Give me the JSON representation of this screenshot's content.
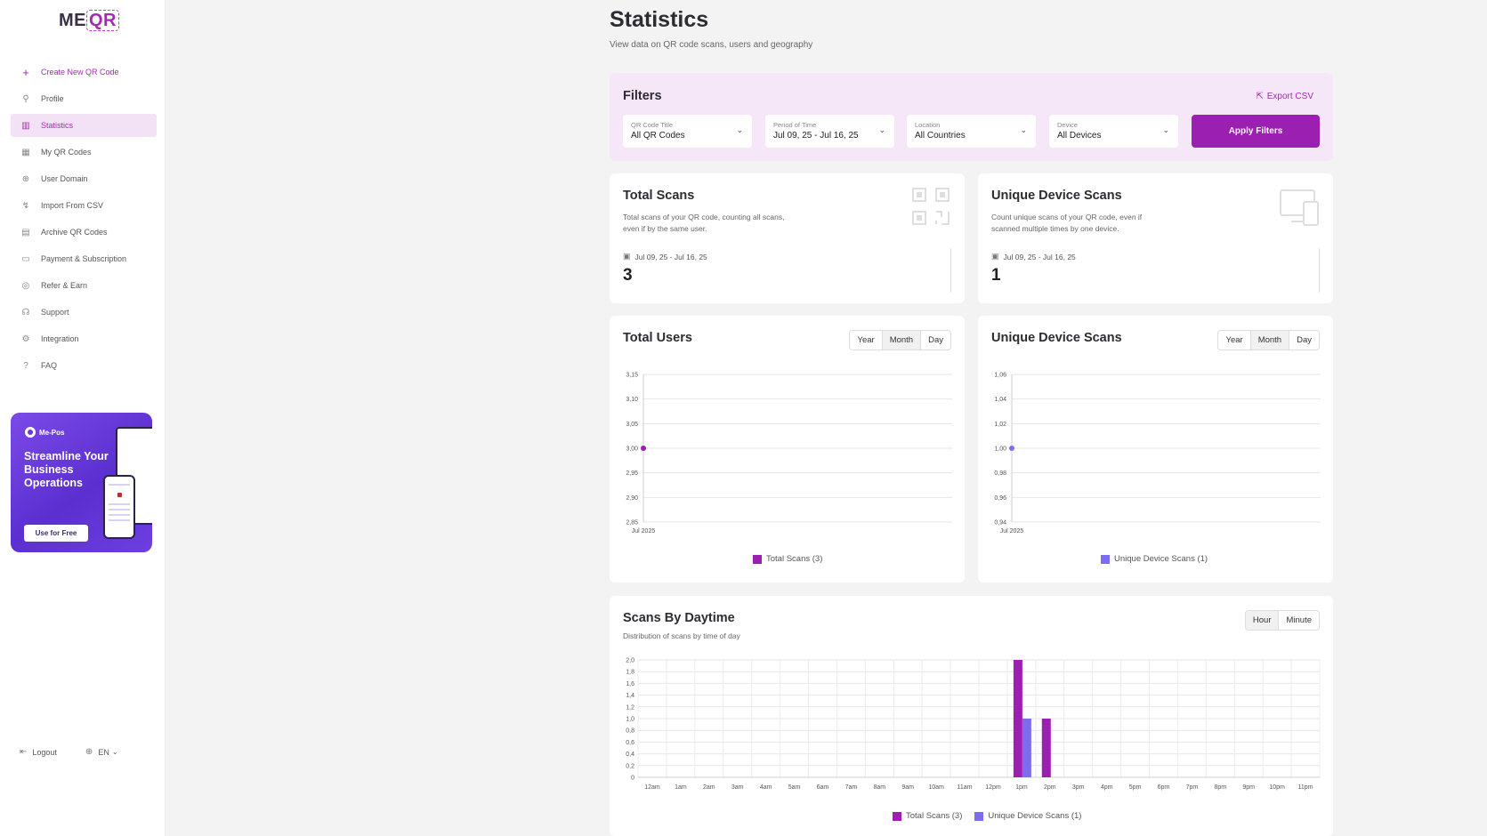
{
  "brand": {
    "logo_left": "ME",
    "logo_right": "QR"
  },
  "sidebar": {
    "items": [
      {
        "label": "Create New QR Code",
        "icon": "plus-icon",
        "glyph": "+"
      },
      {
        "label": "Profile",
        "icon": "user-icon",
        "glyph": "⚲"
      },
      {
        "label": "Statistics",
        "icon": "bar-chart-icon",
        "glyph": "▥"
      },
      {
        "label": "My QR Codes",
        "icon": "qr-icon",
        "glyph": "▦"
      },
      {
        "label": "User Domain",
        "icon": "globe-icon",
        "glyph": "⊕"
      },
      {
        "label": "Import From CSV",
        "icon": "import-icon",
        "glyph": "↯"
      },
      {
        "label": "Archive QR Codes",
        "icon": "archive-icon",
        "glyph": "▤"
      },
      {
        "label": "Payment & Subscription",
        "icon": "card-icon",
        "glyph": "▭"
      },
      {
        "label": "Refer & Earn",
        "icon": "coin-icon",
        "glyph": "◎"
      },
      {
        "label": "Support",
        "icon": "headset-icon",
        "glyph": "☊"
      },
      {
        "label": "Integration",
        "icon": "gear-icon",
        "glyph": "⚙"
      },
      {
        "label": "FAQ",
        "icon": "help-icon",
        "glyph": "?"
      }
    ],
    "promo": {
      "brand": "Me-Pos",
      "headline": "Streamline Your Business Operations",
      "cta": "Use for Free"
    },
    "logout": "Logout",
    "language": "EN"
  },
  "header": {
    "title": "Statistics",
    "subtitle": "View data on QR code scans, users and geography"
  },
  "filters": {
    "title": "Filters",
    "export_label": "Export CSV",
    "selects": [
      {
        "label": "QR Code Title",
        "value": "All QR Codes"
      },
      {
        "label": "Period of Time",
        "value": "Jul 09, 25 - Jul 16, 25"
      },
      {
        "label": "Location",
        "value": "All Countries"
      },
      {
        "label": "Device",
        "value": "All Devices"
      }
    ],
    "apply_label": "Apply Filters"
  },
  "kpis": {
    "total_scans": {
      "title": "Total Scans",
      "desc": "Total scans of your QR code, counting all scans, even if by the same user.",
      "date": "Jul 09, 25 - Jul 16, 25",
      "value": "3"
    },
    "unique_scans": {
      "title": "Unique Device Scans",
      "desc": "Count unique scans of your QR code, even if scanned multiple times by one device.",
      "date": "Jul 09, 25 - Jul 16, 25",
      "value": "1"
    }
  },
  "toggles": {
    "period": [
      "Year",
      "Month",
      "Day"
    ],
    "period_selected": "Month",
    "granularity": [
      "Hour",
      "Minute"
    ],
    "granularity_selected": "Hour"
  },
  "colors": {
    "accent": "#9b1fb0",
    "total_series": "#9b1fb0",
    "unique_series": "#7b6cf0"
  },
  "chart_data": [
    {
      "type": "line",
      "title": "Total Users",
      "x": [
        "Jul 2025"
      ],
      "series": [
        {
          "name": "Total Scans (3)",
          "values": [
            3.0
          ]
        }
      ],
      "yticks": [
        "3,15",
        "3,10",
        "3,05",
        "3,00",
        "2,95",
        "2,90",
        "2,85"
      ],
      "ylim": [
        2.85,
        3.15
      ],
      "grid": true,
      "legend": "bottom"
    },
    {
      "type": "line",
      "title": "Unique Device Scans",
      "x": [
        "Jul 2025"
      ],
      "series": [
        {
          "name": "Unique Device Scans (1)",
          "values": [
            1.0
          ]
        }
      ],
      "yticks": [
        "1,06",
        "1,04",
        "1,02",
        "1,00",
        "0,98",
        "0,96",
        "0,94"
      ],
      "ylim": [
        0.94,
        1.06
      ],
      "grid": true,
      "legend": "bottom"
    },
    {
      "type": "bar",
      "title": "Scans By Daytime",
      "subtitle": "Distribution of scans by time of day",
      "categories": [
        "12am",
        "1am",
        "2am",
        "3am",
        "4am",
        "5am",
        "6am",
        "7am",
        "8am",
        "9am",
        "10am",
        "11am",
        "12pm",
        "1pm",
        "2pm",
        "3pm",
        "4pm",
        "5pm",
        "6pm",
        "7pm",
        "8pm",
        "9pm",
        "10pm",
        "11pm"
      ],
      "series": [
        {
          "name": "Total Scans (3)",
          "values": [
            0,
            0,
            0,
            0,
            0,
            0,
            0,
            0,
            0,
            0,
            0,
            0,
            0,
            2,
            1,
            0,
            0,
            0,
            0,
            0,
            0,
            0,
            0,
            0
          ]
        },
        {
          "name": "Unique Device Scans (1)",
          "values": [
            0,
            0,
            0,
            0,
            0,
            0,
            0,
            0,
            0,
            0,
            0,
            0,
            0,
            1,
            0,
            0,
            0,
            0,
            0,
            0,
            0,
            0,
            0,
            0
          ]
        }
      ],
      "yticks": [
        "2,0",
        "1,8",
        "1,6",
        "1,4",
        "1,2",
        "1,0",
        "0,8",
        "0,6",
        "0,4",
        "0,2",
        "0"
      ],
      "ylim": [
        0,
        2
      ],
      "grid": true,
      "legend": "bottom"
    }
  ]
}
